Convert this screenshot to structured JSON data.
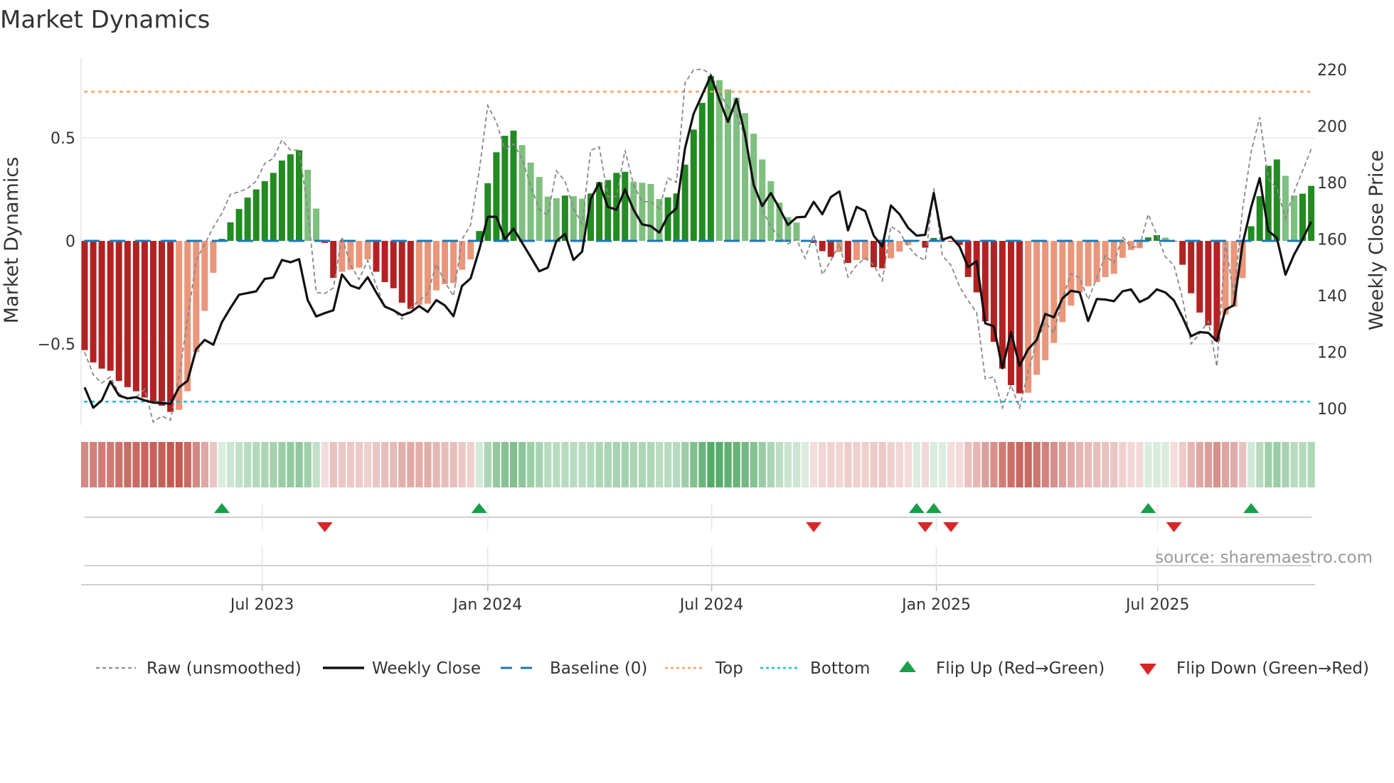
{
  "chart_data": {
    "type": "bar",
    "title": "Market Dynamics",
    "ylabel_left": "Market Dynamics",
    "ylabel_right": "Weekly Close Price",
    "source": "source: sharemaestro.com",
    "x_unit": "week index (weekly bars)",
    "x_ticks": [
      {
        "label": "Jul 2023",
        "week": 20.7
      },
      {
        "label": "Jan 2024",
        "week": 47.0
      },
      {
        "label": "Jul 2024",
        "week": 73.1
      },
      {
        "label": "Jan 2025",
        "week": 99.3
      },
      {
        "label": "Jul 2025",
        "week": 125.1
      }
    ],
    "y_left": {
      "range": [
        -0.9,
        0.92
      ],
      "ticks": [
        {
          "v": 0.5,
          "label": "0.5"
        },
        {
          "v": 0,
          "label": "0"
        },
        {
          "v": -0.5,
          "label": "−0.5"
        }
      ]
    },
    "y_right": {
      "range": [
        100,
        220
      ],
      "ticks": [
        {
          "v": 100,
          "label": "100"
        },
        {
          "v": 120,
          "label": "120"
        },
        {
          "v": 140,
          "label": "140"
        },
        {
          "v": 160,
          "label": "160"
        },
        {
          "v": 180,
          "label": "180"
        },
        {
          "v": 200,
          "label": "200"
        },
        {
          "v": 220,
          "label": "220"
        }
      ]
    },
    "top_level": 0.724,
    "bottom_level": -0.78,
    "baseline": 0,
    "colors": {
      "up_strong": "#228b22",
      "up_weak": "#7fbf7f",
      "down_strong": "#b22222",
      "down_weak": "#e9967a",
      "heat_red": "#bd4a42",
      "heat_green": "#3f9f55",
      "raw": "#888888",
      "close": "#111111",
      "baseline": "#1f77b4",
      "top": "#f4a261",
      "bottom": "#17becf",
      "flip_up": "#1a9e4a",
      "flip_down": "#d62728"
    },
    "series": [
      {
        "name": "Market Dynamics",
        "axis": "left",
        "type": "bar",
        "values": [
          -0.53,
          -0.59,
          -0.62,
          -0.63,
          -0.68,
          -0.71,
          -0.73,
          -0.76,
          -0.78,
          -0.8,
          -0.83,
          -0.82,
          -0.73,
          -0.54,
          -0.34,
          -0.155,
          0.01,
          0.09,
          0.155,
          0.21,
          0.25,
          0.29,
          0.33,
          0.39,
          0.42,
          0.44,
          0.345,
          0.157,
          -0.01,
          -0.18,
          -0.15,
          -0.14,
          -0.13,
          -0.09,
          -0.15,
          -0.2,
          -0.23,
          -0.3,
          -0.33,
          -0.31,
          -0.305,
          -0.24,
          -0.21,
          -0.205,
          -0.14,
          -0.09,
          0.048,
          0.28,
          0.43,
          0.51,
          0.535,
          0.465,
          0.38,
          0.31,
          0.215,
          0.207,
          0.22,
          0.217,
          0.205,
          0.23,
          0.285,
          0.295,
          0.33,
          0.335,
          0.288,
          0.282,
          0.276,
          0.203,
          0.211,
          0.23,
          0.37,
          0.54,
          0.67,
          0.8,
          0.78,
          0.735,
          0.695,
          0.62,
          0.52,
          0.395,
          0.29,
          0.186,
          0.115,
          0.089,
          0.004,
          -0.01,
          -0.05,
          -0.078,
          -0.055,
          -0.107,
          -0.093,
          -0.092,
          -0.128,
          -0.133,
          -0.085,
          -0.052,
          -0.02,
          0.004,
          -0.033,
          0.014,
          0.005,
          -0.004,
          -0.02,
          -0.175,
          -0.25,
          -0.39,
          -0.49,
          -0.62,
          -0.7,
          -0.74,
          -0.737,
          -0.65,
          -0.58,
          -0.495,
          -0.394,
          -0.314,
          -0.25,
          -0.22,
          -0.2,
          -0.176,
          -0.16,
          -0.082,
          -0.044,
          -0.036,
          0.017,
          0.028,
          0.016,
          -0.003,
          -0.116,
          -0.254,
          -0.348,
          -0.41,
          -0.486,
          -0.357,
          -0.32,
          -0.18,
          0.071,
          0.217,
          0.364,
          0.395,
          0.316,
          0.22,
          0.229,
          0.267
        ]
      },
      {
        "name": "Raw (unsmoothed)",
        "axis": "left",
        "type": "line",
        "values": [
          -0.54,
          -0.65,
          -0.69,
          -0.66,
          -0.74,
          -0.77,
          -0.76,
          -0.72,
          -0.88,
          -0.85,
          -0.87,
          -0.66,
          -0.38,
          -0.095,
          -0.015,
          0.066,
          0.134,
          0.226,
          0.238,
          0.255,
          0.29,
          0.376,
          0.4,
          0.49,
          0.44,
          0.44,
          0.157,
          -0.25,
          -0.256,
          -0.228,
          0.02,
          -0.118,
          -0.187,
          -0.095,
          -0.216,
          -0.32,
          -0.337,
          -0.38,
          -0.325,
          -0.29,
          -0.256,
          -0.113,
          -0.2,
          -0.268,
          0.008,
          0.077,
          0.34,
          0.657,
          0.577,
          0.445,
          0.47,
          0.4,
          0.267,
          0.152,
          0.123,
          0.34,
          0.29,
          0.157,
          0.083,
          0.44,
          0.456,
          0.215,
          0.215,
          0.44,
          0.272,
          0.19,
          0.19,
          0.157,
          0.305,
          0.284,
          0.767,
          0.83,
          0.833,
          0.81,
          0.72,
          0.65,
          0.617,
          0.5,
          0.27,
          0.157,
          0.066,
          0.02,
          -0.015,
          0.008,
          -0.084,
          0.03,
          -0.164,
          -0.095,
          -0.015,
          -0.176,
          -0.118,
          -0.084,
          -0.118,
          -0.193,
          0.071,
          0.043,
          -0.026,
          -0.072,
          -0.095,
          0.255,
          -0.072,
          -0.118,
          -0.222,
          -0.29,
          -0.348,
          -0.67,
          -0.66,
          -0.81,
          -0.7,
          -0.81,
          -0.636,
          -0.486,
          -0.394,
          -0.446,
          -0.28,
          -0.159,
          -0.18,
          -0.285,
          -0.18,
          -0.072,
          -0.107,
          0.02,
          -0.032,
          -0.026,
          0.129,
          0.03,
          -0.078,
          -0.118,
          -0.28,
          -0.5,
          -0.45,
          -0.39,
          -0.61,
          -0.009,
          -0.268,
          0.157,
          0.433,
          0.6,
          0.3,
          0.255,
          0.11,
          0.238,
          0.34,
          0.445
        ]
      },
      {
        "name": "Weekly Close",
        "axis": "right",
        "type": "line",
        "values": [
          107.5,
          100.3,
          102.9,
          109.6,
          104.6,
          103.6,
          104.0,
          102.9,
          102.1,
          101.9,
          101.7,
          107.5,
          109.8,
          121.0,
          124.3,
          122.6,
          130.6,
          135.6,
          140.3,
          140.9,
          141.5,
          145.9,
          146.4,
          152.6,
          151.8,
          152.9,
          138.4,
          132.6,
          133.8,
          134.8,
          147.5,
          143.6,
          142.5,
          146.5,
          141.1,
          136.1,
          134.8,
          133.0,
          134.1,
          136.3,
          134.2,
          138.4,
          136.5,
          132.7,
          143.4,
          146.1,
          156.2,
          167.9,
          167.9,
          160.0,
          163.7,
          158.7,
          153.7,
          148.6,
          149.9,
          159.3,
          161.8,
          152.6,
          155.6,
          174.2,
          179.9,
          171.4,
          170.4,
          177.6,
          170.4,
          165.2,
          164.6,
          162.3,
          168.2,
          170.9,
          192.2,
          204.4,
          211.1,
          217.8,
          209.4,
          201.5,
          209.6,
          196.9,
          179.2,
          171.7,
          176.3,
          170.9,
          165.0,
          167.7,
          167.9,
          173.2,
          168.8,
          174.9,
          176.9,
          163.1,
          171.4,
          169.9,
          161.2,
          157.4,
          171.9,
          168.8,
          164.0,
          161.2,
          161.5,
          176.3,
          159.8,
          160.8,
          157.4,
          150.1,
          152.2,
          130.2,
          129.1,
          114.3,
          127.1,
          115.1,
          121.0,
          124.3,
          133.5,
          132.3,
          139.0,
          141.7,
          141.1,
          131.0,
          138.8,
          138.6,
          138.0,
          141.5,
          142.2,
          137.7,
          139.2,
          142.2,
          141.1,
          138.3,
          132.3,
          125.6,
          127.1,
          126.8,
          123.9,
          135.0,
          136.6,
          158.3,
          171.3,
          181.6,
          162.9,
          160.4,
          147.4,
          154.5,
          160.0,
          166.2
        ]
      }
    ],
    "flips_up_weeks": [
      16,
      46,
      97,
      99,
      124,
      136
    ],
    "flips_down_weeks": [
      28,
      85,
      98,
      101,
      127
    ],
    "legend": {
      "placement": "bottom",
      "items": [
        {
          "label": "Raw (unsmoothed)",
          "key": "raw"
        },
        {
          "label": "Weekly Close",
          "key": "close"
        },
        {
          "label": "Baseline (0)",
          "key": "baseline"
        },
        {
          "label": "Top",
          "key": "top"
        },
        {
          "label": "Bottom",
          "key": "bottom"
        },
        {
          "label": "Flip Up (Red→Green)",
          "key": "flip_up"
        },
        {
          "label": "Flip Down (Green→Red)",
          "key": "flip_down"
        }
      ]
    }
  }
}
